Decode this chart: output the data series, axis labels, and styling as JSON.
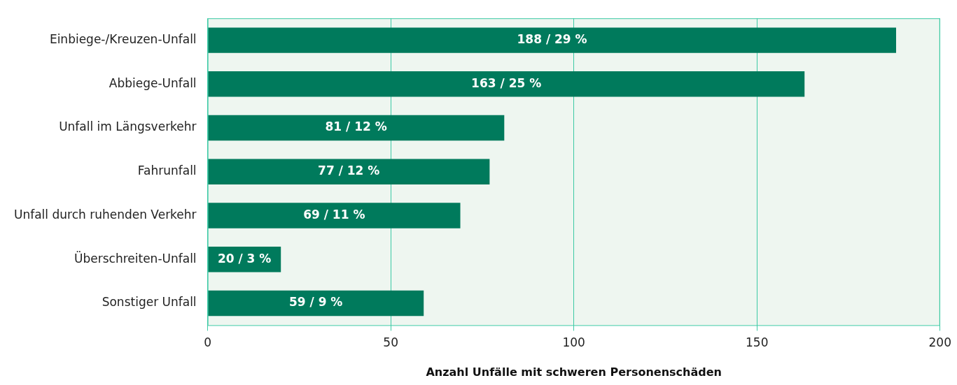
{
  "chart_data": {
    "type": "bar",
    "orientation": "horizontal",
    "xlabel": "Anzahl Unfälle mit schweren Personenschäden",
    "categories": [
      "Einbiege-/Kreuzen-Unfall",
      "Abbiege-Unfall",
      "Unfall im Längsverkehr",
      "Fahrunfall",
      "Unfall durch ruhenden Verkehr",
      "Überschreiten-Unfall",
      "Sonstiger Unfall"
    ],
    "values": [
      188,
      163,
      81,
      77,
      69,
      20,
      59
    ],
    "value_labels": [
      "188 / 29 %",
      "163 / 25 %",
      "81 / 12 %",
      "77 / 12 %",
      "69 / 11 %",
      "20 / 3 %",
      "59 / 9 %"
    ],
    "color": "#007a5c",
    "xlim": [
      0,
      200
    ],
    "xticks": [
      0,
      50,
      100,
      150,
      200
    ],
    "grid": "x",
    "legend": false
  }
}
